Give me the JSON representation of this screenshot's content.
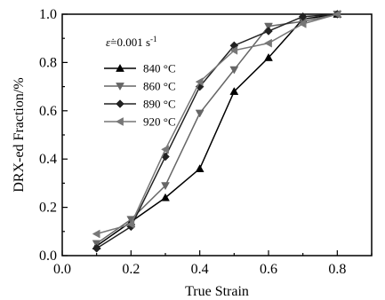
{
  "chart_data": {
    "type": "line",
    "xlabel": "True Strain",
    "ylabel": "DRX-ed Fraction/%",
    "xlim": [
      0.0,
      0.9
    ],
    "ylim": [
      0.0,
      1.0
    ],
    "x_ticks": [
      "0.0",
      "0.2",
      "0.4",
      "0.6",
      "0.8"
    ],
    "y_ticks": [
      "0.0",
      "0.2",
      "0.4",
      "0.6",
      "0.8",
      "1.0"
    ],
    "grid": false,
    "legend_position": "top-left",
    "annotation": {
      "symbol": "ε̇",
      "text": "=0.001 s",
      "superscript": "-1"
    },
    "series": [
      {
        "name": "840 °C",
        "color": "#000000",
        "marker": "triangle-up",
        "x": [
          0.1,
          0.2,
          0.3,
          0.4,
          0.5,
          0.6,
          0.7,
          0.8
        ],
        "y": [
          0.04,
          0.14,
          0.24,
          0.36,
          0.68,
          0.82,
          0.98,
          1.0
        ]
      },
      {
        "name": "860 °C",
        "color": "#666666",
        "marker": "triangle-down",
        "x": [
          0.1,
          0.2,
          0.3,
          0.4,
          0.5,
          0.6,
          0.7,
          0.8
        ],
        "y": [
          0.05,
          0.15,
          0.29,
          0.59,
          0.77,
          0.95,
          0.97,
          1.0
        ]
      },
      {
        "name": "890 °C",
        "color": "#222222",
        "marker": "diamond",
        "x": [
          0.1,
          0.2,
          0.3,
          0.4,
          0.5,
          0.6,
          0.7,
          0.8
        ],
        "y": [
          0.03,
          0.12,
          0.41,
          0.7,
          0.87,
          0.93,
          0.99,
          1.0
        ]
      },
      {
        "name": "920 °C",
        "color": "#777777",
        "marker": "triangle-left",
        "x": [
          0.1,
          0.2,
          0.3,
          0.4,
          0.5,
          0.6,
          0.7,
          0.8
        ],
        "y": [
          0.09,
          0.13,
          0.44,
          0.72,
          0.85,
          0.88,
          0.96,
          1.0
        ]
      }
    ]
  }
}
